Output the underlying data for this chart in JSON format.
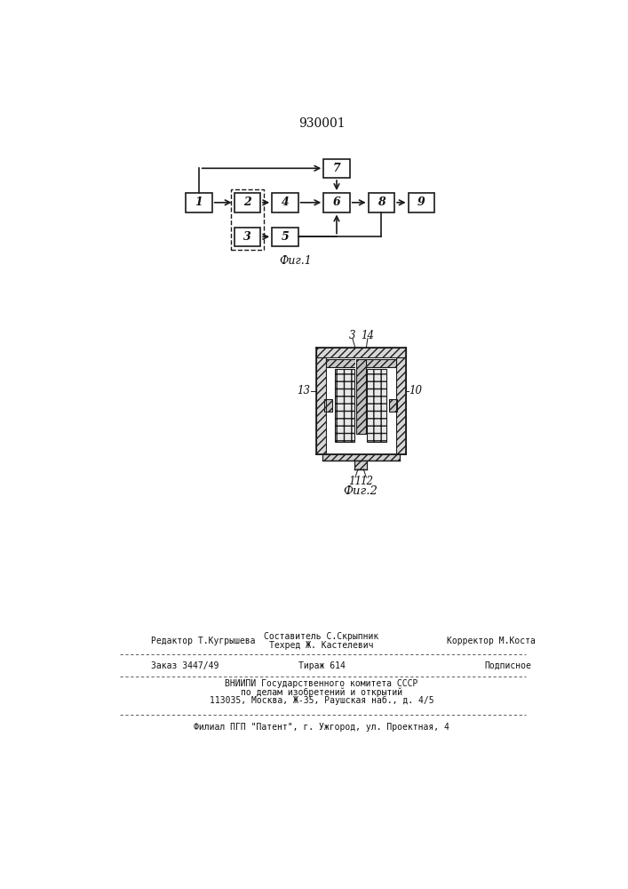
{
  "title": "930001",
  "fig1_caption": "Фиг.1",
  "fig2_caption": "Фиг.2",
  "background": "#ffffff",
  "box_color": "#ffffff",
  "box_edge": "#1a1a1a",
  "text_color": "#111111",
  "footer_line1_left": "Редактор Т.Кугрышева",
  "footer_compose": "Составитель С.Скрыпник",
  "footer_techred": "Техред Ж. Кастелевич",
  "footer_correct": "Корректор М.Коста",
  "footer_order": "Заказ 3447/49",
  "footer_tirazh": "Тираж 614",
  "footer_podpis": "Подписное",
  "footer_vniip1": "ВНИИПИ Государственного комитета СССР",
  "footer_vniip2": "по делам изобретений и открытий",
  "footer_vniip3": "113035, Москва, Ж-35, Раушская наб., д. 4/5",
  "footer_filial": "Филиал ПГП \"Патент\", г. Ужгород, ул. Проектная, 4"
}
